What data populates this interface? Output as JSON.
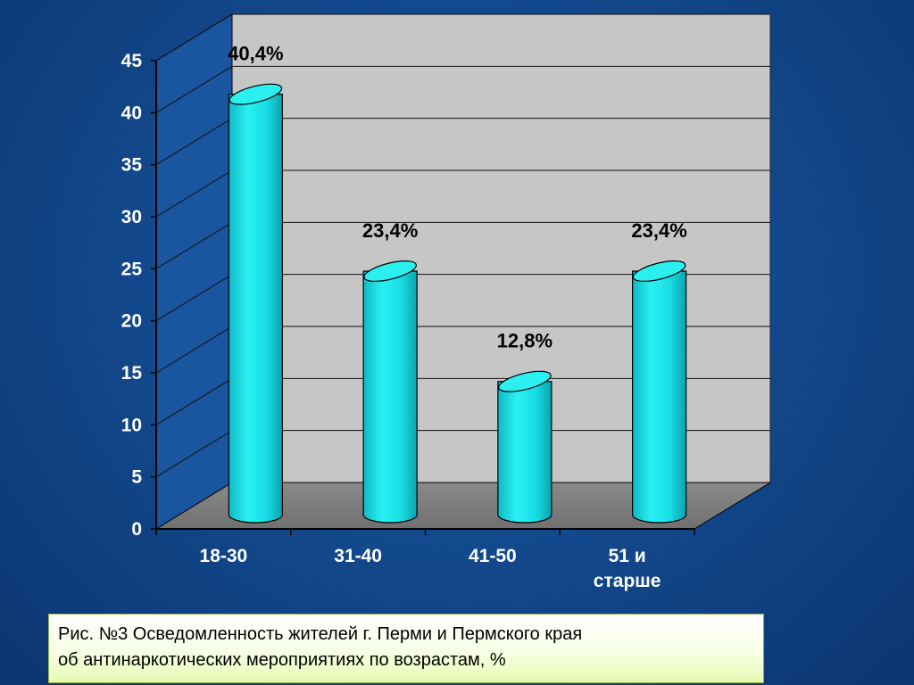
{
  "chart_data": {
    "type": "bar",
    "categories": [
      "18-30",
      "31-40",
      "41-50",
      "51 и\nстарше"
    ],
    "values": [
      40.4,
      23.4,
      12.8,
      23.4
    ],
    "data_labels": [
      "40,4%",
      "23,4%",
      "12,8%",
      "23,4%"
    ],
    "yticks": [
      "0",
      "5",
      "10",
      "15",
      "20",
      "25",
      "30",
      "35",
      "40",
      "45"
    ],
    "ylim": [
      0,
      45
    ],
    "grid": true,
    "bar_style": "3d-cylinder",
    "colors": {
      "bar": "#17e0e8",
      "bar_top": "#2cf0f0",
      "back_wall": "#c6c6c6",
      "floor": "#808080",
      "axis_text": "#ffffff",
      "label_text": "#000000"
    }
  },
  "caption": {
    "line1": "Рис. №3 Осведомленность жителей г. Перми  и Пермского края",
    "line2": "об антинаркотических мероприятиях по возрастам, %"
  }
}
